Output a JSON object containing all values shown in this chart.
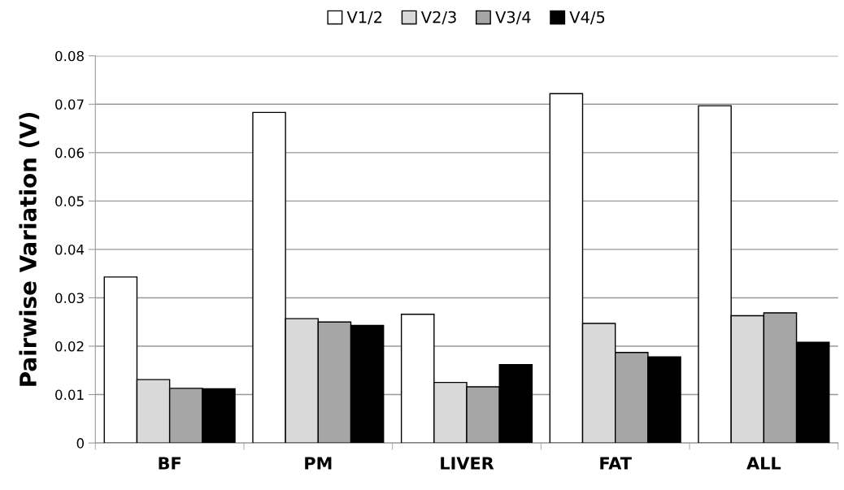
{
  "chart_data": {
    "type": "bar",
    "ylabel": "Pairwise Variation (V)",
    "categories": [
      "BF",
      "PM",
      "LIVER",
      "FAT",
      "ALL"
    ],
    "series": [
      {
        "name": "V1/2",
        "color": "#ffffff",
        "values": [
          0.0343,
          0.0683,
          0.0266,
          0.0722,
          0.0697
        ]
      },
      {
        "name": "V2/3",
        "color": "#d9d9d9",
        "values": [
          0.0131,
          0.0257,
          0.0125,
          0.0247,
          0.0263
        ]
      },
      {
        "name": "V3/4",
        "color": "#a6a6a6",
        "values": [
          0.0113,
          0.025,
          0.0116,
          0.0187,
          0.0269
        ]
      },
      {
        "name": "V4/5",
        "color": "#000000",
        "values": [
          0.0112,
          0.0243,
          0.0162,
          0.0178,
          0.0208
        ]
      }
    ],
    "ylim": [
      0,
      0.08
    ],
    "yticks": [
      0,
      0.01,
      0.02,
      0.03,
      0.04,
      0.05,
      0.06,
      0.07,
      0.08
    ],
    "grid": "y",
    "legend": "top"
  }
}
